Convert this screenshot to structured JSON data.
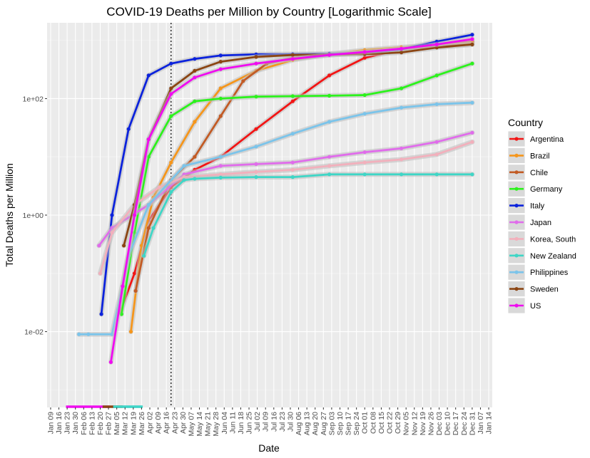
{
  "chart_data": {
    "type": "line",
    "title": "COVID-19 Deaths per Million by Country [Logarithmic Scale]",
    "xlabel": "Date",
    "ylabel": "Total Deaths per Million",
    "y_scale": "log10",
    "ylim": [
      0.0005,
      2000
    ],
    "y_ticks": [
      {
        "value": 0.01,
        "label": "1e-02"
      },
      {
        "value": 1,
        "label": "1e+00"
      },
      {
        "value": 100,
        "label": "1e+02"
      }
    ],
    "xlim": [
      "2020-01-06",
      "2021-01-17"
    ],
    "x_ticks": [
      {
        "date": "2020-01-09",
        "label": "Jan 09"
      },
      {
        "date": "2020-01-16",
        "label": "Jan 16"
      },
      {
        "date": "2020-01-23",
        "label": "Jan 23"
      },
      {
        "date": "2020-01-30",
        "label": "Jan 30"
      },
      {
        "date": "2020-02-06",
        "label": "Feb 06"
      },
      {
        "date": "2020-02-13",
        "label": "Feb 13"
      },
      {
        "date": "2020-02-20",
        "label": "Feb 20"
      },
      {
        "date": "2020-02-27",
        "label": "Feb 27"
      },
      {
        "date": "2020-03-05",
        "label": "Mar 05"
      },
      {
        "date": "2020-03-12",
        "label": "Mar 12"
      },
      {
        "date": "2020-03-19",
        "label": "Mar 19"
      },
      {
        "date": "2020-03-26",
        "label": "Mar 26"
      },
      {
        "date": "2020-04-02",
        "label": "Apr 02"
      },
      {
        "date": "2020-04-09",
        "label": "Apr 09"
      },
      {
        "date": "2020-04-16",
        "label": "Apr 16"
      },
      {
        "date": "2020-04-23",
        "label": "Apr 23"
      },
      {
        "date": "2020-04-30",
        "label": "Apr 30"
      },
      {
        "date": "2020-05-07",
        "label": "May 07"
      },
      {
        "date": "2020-05-14",
        "label": "May 14"
      },
      {
        "date": "2020-05-21",
        "label": "May 21"
      },
      {
        "date": "2020-05-28",
        "label": "May 28"
      },
      {
        "date": "2020-06-04",
        "label": "Jun 04"
      },
      {
        "date": "2020-06-11",
        "label": "Jun 11"
      },
      {
        "date": "2020-06-18",
        "label": "Jun 18"
      },
      {
        "date": "2020-06-25",
        "label": "Jun 25"
      },
      {
        "date": "2020-07-02",
        "label": "Jul 02"
      },
      {
        "date": "2020-07-09",
        "label": "Jul 09"
      },
      {
        "date": "2020-07-16",
        "label": "Jul 16"
      },
      {
        "date": "2020-07-23",
        "label": "Jul 23"
      },
      {
        "date": "2020-07-30",
        "label": "Jul 30"
      },
      {
        "date": "2020-08-06",
        "label": "Aug 06"
      },
      {
        "date": "2020-08-13",
        "label": "Aug 13"
      },
      {
        "date": "2020-08-20",
        "label": "Aug 20"
      },
      {
        "date": "2020-08-27",
        "label": "Aug 27"
      },
      {
        "date": "2020-09-03",
        "label": "Sep 03"
      },
      {
        "date": "2020-09-10",
        "label": "Sep 10"
      },
      {
        "date": "2020-09-17",
        "label": "Sep 17"
      },
      {
        "date": "2020-09-24",
        "label": "Sep 24"
      },
      {
        "date": "2020-10-01",
        "label": "Oct 01"
      },
      {
        "date": "2020-10-08",
        "label": "Oct 08"
      },
      {
        "date": "2020-10-15",
        "label": "Oct 15"
      },
      {
        "date": "2020-10-22",
        "label": "Oct 22"
      },
      {
        "date": "2020-10-29",
        "label": "Oct 29"
      },
      {
        "date": "2020-11-05",
        "label": "Nov 05"
      },
      {
        "date": "2020-11-12",
        "label": "Nov 12"
      },
      {
        "date": "2020-11-19",
        "label": "Nov 19"
      },
      {
        "date": "2020-11-26",
        "label": "Nov 26"
      },
      {
        "date": "2020-12-03",
        "label": "Dec 03"
      },
      {
        "date": "2020-12-10",
        "label": "Dec 10"
      },
      {
        "date": "2020-12-17",
        "label": "Dec 17"
      },
      {
        "date": "2020-12-24",
        "label": "Dec 24"
      },
      {
        "date": "2020-12-31",
        "label": "Dec 31"
      },
      {
        "date": "2021-01-07",
        "label": "Jan 07"
      },
      {
        "date": "2021-01-14",
        "label": "Jan 14"
      }
    ],
    "reference_line": {
      "date": "2020-04-20",
      "style": "dotted"
    },
    "grid": true,
    "legend": {
      "title": "Country",
      "position": "right"
    },
    "series": [
      {
        "name": "Argentina",
        "color": "#F21515",
        "points": [
          [
            "2020-03-08",
            0.022
          ],
          [
            "2020-03-20",
            0.1
          ],
          [
            "2020-04-01",
            0.8
          ],
          [
            "2020-04-20",
            3
          ],
          [
            "2020-05-10",
            6
          ],
          [
            "2020-06-01",
            10
          ],
          [
            "2020-07-01",
            30
          ],
          [
            "2020-08-01",
            90
          ],
          [
            "2020-09-01",
            250
          ],
          [
            "2020-10-01",
            500
          ],
          [
            "2020-11-01",
            700
          ],
          [
            "2020-12-01",
            850
          ],
          [
            "2020-12-31",
            960
          ]
        ]
      },
      {
        "name": "Brazil",
        "color": "#F5961C",
        "points": [
          [
            "2020-03-17",
            0.01
          ],
          [
            "2020-03-26",
            0.3
          ],
          [
            "2020-04-05",
            2
          ],
          [
            "2020-04-20",
            8
          ],
          [
            "2020-05-10",
            40
          ],
          [
            "2020-06-01",
            150
          ],
          [
            "2020-07-01",
            300
          ],
          [
            "2020-08-01",
            460
          ],
          [
            "2020-09-01",
            580
          ],
          [
            "2020-10-01",
            680
          ],
          [
            "2020-11-01",
            760
          ],
          [
            "2020-12-01",
            830
          ],
          [
            "2020-12-31",
            910
          ]
        ]
      },
      {
        "name": "Chile",
        "color": "#C25B25",
        "points": [
          [
            "2020-03-21",
            0.05
          ],
          [
            "2020-04-01",
            0.6
          ],
          [
            "2020-04-20",
            4
          ],
          [
            "2020-05-10",
            10
          ],
          [
            "2020-06-01",
            50
          ],
          [
            "2020-06-20",
            200
          ],
          [
            "2020-07-10",
            400
          ],
          [
            "2020-08-01",
            500
          ],
          [
            "2020-09-01",
            560
          ],
          [
            "2020-10-01",
            620
          ],
          [
            "2020-11-01",
            700
          ],
          [
            "2020-12-01",
            780
          ],
          [
            "2020-12-31",
            850
          ]
        ]
      },
      {
        "name": "Germany",
        "color": "#2CF21C",
        "points": [
          [
            "2020-03-09",
            0.02
          ],
          [
            "2020-03-20",
            0.5
          ],
          [
            "2020-04-01",
            10
          ],
          [
            "2020-04-20",
            50
          ],
          [
            "2020-05-10",
            90
          ],
          [
            "2020-06-01",
            100
          ],
          [
            "2020-07-01",
            108
          ],
          [
            "2020-08-01",
            110
          ],
          [
            "2020-09-01",
            112
          ],
          [
            "2020-10-01",
            115
          ],
          [
            "2020-11-01",
            150
          ],
          [
            "2020-12-01",
            250
          ],
          [
            "2020-12-31",
            400
          ]
        ]
      },
      {
        "name": "Italy",
        "color": "#0C23DC",
        "points": [
          [
            "2020-02-21",
            0.02
          ],
          [
            "2020-03-01",
            1
          ],
          [
            "2020-03-15",
            30
          ],
          [
            "2020-04-01",
            250
          ],
          [
            "2020-04-20",
            400
          ],
          [
            "2020-05-10",
            480
          ],
          [
            "2020-06-01",
            550
          ],
          [
            "2020-07-01",
            575
          ],
          [
            "2020-08-01",
            580
          ],
          [
            "2020-09-01",
            590
          ],
          [
            "2020-10-01",
            600
          ],
          [
            "2020-11-01",
            700
          ],
          [
            "2020-12-01",
            950
          ],
          [
            "2020-12-31",
            1250
          ]
        ]
      },
      {
        "name": "Japan",
        "color": "#E06CEB",
        "points": [
          [
            "2020-02-19",
            0.3
          ],
          [
            "2020-03-01",
            0.6
          ],
          [
            "2020-04-01",
            1.5
          ],
          [
            "2020-05-01",
            5
          ],
          [
            "2020-06-01",
            7
          ],
          [
            "2020-07-01",
            7.5
          ],
          [
            "2020-08-01",
            8
          ],
          [
            "2020-09-01",
            10
          ],
          [
            "2020-10-01",
            12
          ],
          [
            "2020-11-01",
            14
          ],
          [
            "2020-12-01",
            18
          ],
          [
            "2020-12-31",
            26
          ]
        ]
      },
      {
        "name": "Korea, South",
        "color": "#F2B0BC",
        "points": [
          [
            "2020-02-20",
            0.1
          ],
          [
            "2020-03-01",
            0.5
          ],
          [
            "2020-03-20",
            1.5
          ],
          [
            "2020-04-10",
            3
          ],
          [
            "2020-05-01",
            4.5
          ],
          [
            "2020-06-01",
            5
          ],
          [
            "2020-07-01",
            5.5
          ],
          [
            "2020-08-01",
            6
          ],
          [
            "2020-09-01",
            7
          ],
          [
            "2020-10-01",
            8
          ],
          [
            "2020-11-01",
            9
          ],
          [
            "2020-12-01",
            11
          ],
          [
            "2020-12-31",
            18
          ]
        ]
      },
      {
        "name": "New Zealand",
        "color": "#3FD6C6",
        "points": [
          [
            "2020-03-28",
            0.2
          ],
          [
            "2020-04-05",
            0.6
          ],
          [
            "2020-04-20",
            2.5
          ],
          [
            "2020-05-01",
            4
          ],
          [
            "2020-05-10",
            4.2
          ],
          [
            "2020-06-01",
            4.4
          ],
          [
            "2020-07-01",
            4.5
          ],
          [
            "2020-08-01",
            4.5
          ],
          [
            "2020-09-01",
            5
          ],
          [
            "2020-10-01",
            5
          ],
          [
            "2020-11-01",
            5
          ],
          [
            "2020-12-01",
            5
          ],
          [
            "2020-12-31",
            5
          ]
        ]
      },
      {
        "name": "Philippines",
        "color": "#7BC4EA",
        "points": [
          [
            "2020-02-02",
            0.009
          ],
          [
            "2020-02-10",
            0.009
          ],
          [
            "2020-03-01",
            0.009
          ],
          [
            "2020-03-15",
            0.2
          ],
          [
            "2020-04-01",
            1.5
          ],
          [
            "2020-05-01",
            7
          ],
          [
            "2020-06-01",
            10
          ],
          [
            "2020-07-01",
            15
          ],
          [
            "2020-08-01",
            25
          ],
          [
            "2020-09-01",
            40
          ],
          [
            "2020-10-01",
            55
          ],
          [
            "2020-11-01",
            70
          ],
          [
            "2020-12-01",
            80
          ],
          [
            "2020-12-31",
            85
          ]
        ]
      },
      {
        "name": "Sweden",
        "color": "#8B4513",
        "points": [
          [
            "2020-03-11",
            0.3
          ],
          [
            "2020-03-20",
            1.5
          ],
          [
            "2020-04-01",
            20
          ],
          [
            "2020-04-20",
            150
          ],
          [
            "2020-05-10",
            300
          ],
          [
            "2020-06-01",
            430
          ],
          [
            "2020-07-01",
            520
          ],
          [
            "2020-08-01",
            560
          ],
          [
            "2020-09-01",
            570
          ],
          [
            "2020-10-01",
            580
          ],
          [
            "2020-11-01",
            620
          ],
          [
            "2020-12-01",
            750
          ],
          [
            "2020-12-31",
            850
          ]
        ]
      },
      {
        "name": "US",
        "color": "#F00CF0",
        "points": [
          [
            "2020-02-29",
            0.003
          ],
          [
            "2020-03-10",
            0.06
          ],
          [
            "2020-03-20",
            1
          ],
          [
            "2020-04-01",
            20
          ],
          [
            "2020-04-20",
            120
          ],
          [
            "2020-05-10",
            230
          ],
          [
            "2020-06-01",
            320
          ],
          [
            "2020-07-01",
            400
          ],
          [
            "2020-08-01",
            480
          ],
          [
            "2020-09-01",
            560
          ],
          [
            "2020-10-01",
            630
          ],
          [
            "2020-11-01",
            720
          ],
          [
            "2020-12-01",
            850
          ],
          [
            "2020-12-31",
            1050
          ]
        ]
      }
    ]
  }
}
